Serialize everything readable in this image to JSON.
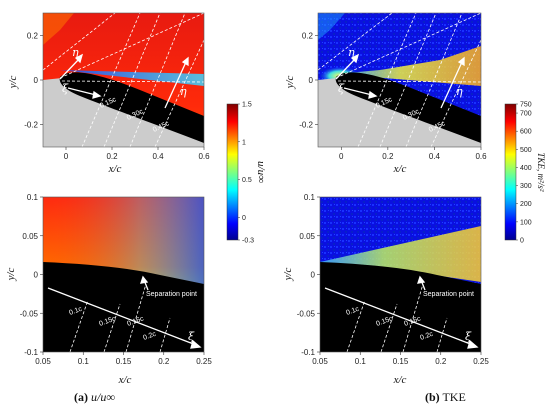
{
  "chart_data": [
    {
      "type": "heatmap",
      "panel": "top-left",
      "xlabel": "x/c",
      "ylabel": "y/c",
      "xlim": [
        -0.1,
        0.6
      ],
      "ylim": [
        -0.3,
        0.3
      ],
      "xticks": [
        "0",
        "0.2",
        "0.4",
        "0.6"
      ],
      "yticks": [
        "0.2",
        "0",
        "-0.2"
      ],
      "annotations": [
        "0.15c",
        "0.30c",
        "0.45c",
        "η",
        "ξ",
        "η"
      ]
    },
    {
      "type": "heatmap",
      "panel": "top-right",
      "xlabel": "x/c",
      "ylabel": "y/c",
      "xlim": [
        -0.1,
        0.6
      ],
      "ylim": [
        -0.3,
        0.3
      ],
      "xticks": [
        "0",
        "0.2",
        "0.4",
        "0.6"
      ],
      "yticks": [
        "0.2",
        "0",
        "-0.2"
      ],
      "annotations": [
        "0.15c",
        "0.30c",
        "0.45c",
        "η",
        "ξ",
        "η"
      ]
    },
    {
      "type": "heatmap",
      "panel": "bottom-left",
      "xlabel": "x/c",
      "ylabel": "y/c",
      "xlim": [
        0.05,
        0.25
      ],
      "ylim": [
        -0.1,
        0.1
      ],
      "xticks": [
        "0.05",
        "0.1",
        "0.15",
        "0.2",
        "0.25"
      ],
      "yticks": [
        "0.1",
        "0.05",
        "0",
        "-0.05",
        "-0.1"
      ],
      "annotations": [
        "Separation point",
        "0.1c",
        "0.15c",
        "0.16c",
        "0.2c",
        "ξ"
      ]
    },
    {
      "type": "heatmap",
      "panel": "bottom-right",
      "xlabel": "x/c",
      "ylabel": "y/c",
      "xlim": [
        0.05,
        0.25
      ],
      "ylim": [
        -0.1,
        0.1
      ],
      "xticks": [
        "0.05",
        "0.1",
        "0.15",
        "0.2",
        "0.25"
      ],
      "yticks": [
        "0.1",
        "0.05",
        "0",
        "-0.05",
        "-0.1"
      ],
      "annotations": [
        "Separation point",
        "0.1c",
        "0.15c",
        "0.16c",
        "0.2c",
        "ξ"
      ]
    }
  ],
  "colorbars": {
    "left": {
      "label": "u/u∞",
      "range": [
        -0.3,
        1.5
      ],
      "ticks": [
        "1.5",
        "1",
        "0.5",
        "0",
        "-0.3"
      ]
    },
    "right": {
      "label": "TKE, m²/s²",
      "range": [
        0,
        750
      ],
      "ticks": [
        "750",
        "700",
        "600",
        "500",
        "400",
        "300",
        "200",
        "100",
        "0"
      ]
    }
  },
  "captions": {
    "left_tag": "(a)",
    "left_text": "u/u∞",
    "right_tag": "(b)",
    "right_text": "TKE"
  },
  "colors": {
    "solid": "#000000",
    "masked": "#cccccc"
  }
}
